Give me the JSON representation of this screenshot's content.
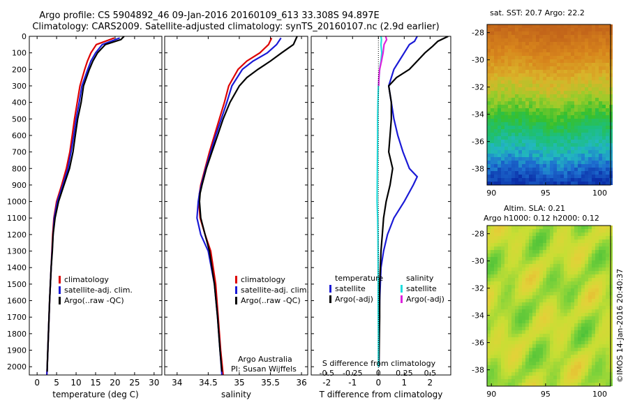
{
  "header": {
    "line1": "Argo profile: CS 5904892_46 09-Jan-2016 20160109_613 33.308S 94.897E",
    "line2": "Climatology: CARS2009. Satellite-adjusted climatology: synTS_20160107.nc (2.9d earlier)"
  },
  "footer": {
    "side_text": "©IMOS 14-Jan-2016 20:40:37",
    "argo_label": "Argo Australia",
    "pi_label": "PI: Susan Wijffels"
  },
  "colors": {
    "climatology": "#dd0000",
    "satellite": "#1a1ad6",
    "argo": "#000000",
    "sal_satellite": "#22dddd",
    "sal_argo": "#dd22dd"
  },
  "chart_data": [
    {
      "type": "line",
      "id": "temperature",
      "xlabel": "temperature (deg C)",
      "xlim": [
        -2,
        32
      ],
      "xticks": [
        0,
        5,
        10,
        15,
        20,
        25,
        30
      ],
      "ylim": [
        2050,
        0
      ],
      "yticks": [
        0,
        100,
        200,
        300,
        400,
        500,
        600,
        700,
        800,
        900,
        1000,
        1100,
        1200,
        1300,
        1400,
        1500,
        1600,
        1700,
        1800,
        1900,
        2000
      ],
      "legend": [
        "climatology",
        "satellite-adj. clim.",
        "Argo(..raw -QC)"
      ],
      "series": [
        {
          "name": "climatology",
          "color_key": "climatology",
          "depth": [
            10,
            50,
            100,
            150,
            200,
            300,
            400,
            500,
            600,
            700,
            800,
            900,
            1000,
            1100,
            1200,
            1400,
            1600,
            1800,
            2000,
            2050
          ],
          "values": [
            19.8,
            15.2,
            13.8,
            12.9,
            12.2,
            11.0,
            10.3,
            9.6,
            9.0,
            8.4,
            7.5,
            6.3,
            5.0,
            4.3,
            4.0,
            3.6,
            3.2,
            2.9,
            2.6,
            2.5
          ]
        },
        {
          "name": "satellite-adj. clim.",
          "color_key": "satellite",
          "depth": [
            10,
            50,
            100,
            150,
            200,
            300,
            400,
            500,
            600,
            700,
            800,
            900,
            1000,
            1100,
            1200,
            1400,
            1600,
            1800,
            2000,
            2050
          ],
          "values": [
            21.2,
            16.7,
            15.0,
            13.8,
            13.0,
            11.5,
            10.8,
            10.0,
            9.4,
            8.7,
            7.9,
            6.6,
            5.2,
            4.4,
            4.1,
            3.6,
            3.2,
            2.9,
            2.6,
            2.5
          ]
        },
        {
          "name": "Argo(..raw -QC)",
          "color_key": "argo",
          "depth": [
            0,
            20,
            50,
            100,
            150,
            200,
            300,
            400,
            500,
            600,
            700,
            800,
            900,
            1000,
            1100,
            1200,
            1300,
            1400,
            1600,
            1800,
            2000,
            2030
          ],
          "values": [
            22.3,
            21.5,
            17.5,
            15.5,
            14.3,
            13.4,
            11.9,
            11.3,
            10.4,
            9.8,
            9.2,
            8.3,
            6.9,
            5.5,
            4.6,
            4.1,
            3.9,
            3.6,
            3.2,
            2.9,
            2.6,
            2.6
          ]
        }
      ]
    },
    {
      "type": "line",
      "id": "salinity",
      "xlabel": "salinity",
      "xlim": [
        33.8,
        36.1
      ],
      "xticks": [
        34,
        34.5,
        35,
        35.5,
        36
      ],
      "ylim": [
        2050,
        0
      ],
      "legend": [
        "climatology",
        "satellite-adj. clim.",
        "Argo(..raw -QC)"
      ],
      "series": [
        {
          "name": "climatology",
          "color_key": "climatology",
          "depth": [
            10,
            50,
            100,
            150,
            200,
            300,
            400,
            500,
            600,
            700,
            800,
            900,
            950,
            1000,
            1100,
            1200,
            1300,
            1500,
            1700,
            1900,
            2050
          ],
          "values": [
            35.52,
            35.47,
            35.33,
            35.12,
            34.98,
            34.83,
            34.76,
            34.68,
            34.6,
            34.52,
            34.45,
            34.38,
            34.36,
            34.35,
            34.37,
            34.45,
            34.54,
            34.62,
            34.66,
            34.7,
            34.74
          ]
        },
        {
          "name": "satellite-adj. clim.",
          "color_key": "satellite",
          "depth": [
            10,
            50,
            100,
            150,
            200,
            300,
            400,
            500,
            600,
            700,
            800,
            900,
            950,
            1000,
            1100,
            1200,
            1300,
            1500,
            1700,
            1900,
            2050
          ],
          "values": [
            35.67,
            35.6,
            35.45,
            35.22,
            35.05,
            34.88,
            34.8,
            34.71,
            34.62,
            34.54,
            34.46,
            34.39,
            34.36,
            34.34,
            34.32,
            34.38,
            34.5,
            34.6,
            34.65,
            34.69,
            34.72
          ]
        },
        {
          "name": "Argo(..raw -QC)",
          "color_key": "argo",
          "depth": [
            0,
            50,
            100,
            150,
            200,
            250,
            300,
            400,
            500,
            600,
            700,
            800,
            900,
            950,
            1000,
            1100,
            1200,
            1300,
            1500,
            1700,
            1900,
            2030
          ],
          "values": [
            35.93,
            35.87,
            35.68,
            35.5,
            35.3,
            35.12,
            35.0,
            34.85,
            34.74,
            34.65,
            34.56,
            34.47,
            34.4,
            34.37,
            34.36,
            34.38,
            34.45,
            34.52,
            34.6,
            34.65,
            34.69,
            34.72
          ]
        }
      ]
    },
    {
      "type": "line",
      "id": "difference",
      "xlabel": "T difference from climatology",
      "xlabel_top": "S difference from climatology",
      "xlim": [
        -2.6,
        2.8
      ],
      "xticks": [
        -2,
        -1,
        0,
        1,
        2
      ],
      "xticks_top_labels": [
        "-0.5",
        "-0.25",
        "0",
        "0.25",
        "0.5"
      ],
      "ylim": [
        2050,
        0
      ],
      "legend_temperature_title": "temperature",
      "legend_salinity_title": "salinity",
      "legend_temperature": [
        "satellite",
        "Argo(-adj)"
      ],
      "legend_salinity": [
        "satellite",
        "Argo(-adj)"
      ],
      "series": [
        {
          "name": "T satellite",
          "color_key": "satellite",
          "depth": [
            0,
            30,
            50,
            100,
            150,
            200,
            300,
            400,
            500,
            600,
            700,
            800,
            850,
            900,
            1000,
            1100,
            1200,
            1300,
            1400,
            1600,
            1800,
            2000
          ],
          "values": [
            1.5,
            1.4,
            1.2,
            1.0,
            0.8,
            0.6,
            0.4,
            0.5,
            0.6,
            0.75,
            0.95,
            1.2,
            1.5,
            1.35,
            1.0,
            0.6,
            0.35,
            0.2,
            0.1,
            0.05,
            0.03,
            0.02
          ]
        },
        {
          "name": "T Argo(-adj)",
          "color_key": "argo",
          "depth": [
            0,
            30,
            60,
            100,
            150,
            200,
            250,
            300,
            400,
            500,
            600,
            700,
            800,
            900,
            1000,
            1100,
            1200,
            1300,
            1500,
            1700,
            1900,
            2000
          ],
          "values": [
            2.7,
            2.3,
            2.1,
            1.8,
            1.5,
            1.2,
            0.7,
            0.4,
            0.5,
            0.5,
            0.45,
            0.4,
            0.55,
            0.45,
            0.3,
            0.2,
            0.15,
            0.1,
            0.05,
            0.05,
            0.03,
            0.02
          ]
        },
        {
          "name": "S satellite",
          "color_key": "sal_satellite",
          "depth": [
            0,
            20,
            50,
            100,
            150,
            200,
            300,
            400,
            500,
            600,
            800,
            1000,
            1100,
            1200,
            1400,
            1600,
            1800,
            2000
          ],
          "values": [
            0.1,
            0.12,
            0.1,
            0.13,
            0.1,
            0.05,
            0.0,
            -0.02,
            -0.03,
            -0.03,
            -0.04,
            -0.05,
            -0.03,
            -0.02,
            -0.01,
            -0.01,
            0.0,
            0.0
          ]
        },
        {
          "name": "S Argo(-adj)",
          "color_key": "sal_argo",
          "depth": [
            0,
            20,
            50,
            100,
            150,
            200,
            250,
            300
          ],
          "values": [
            0.28,
            0.32,
            0.22,
            0.18,
            0.12,
            0.05,
            0.02,
            0.01
          ]
        }
      ]
    },
    {
      "type": "heatmap",
      "id": "sst_map",
      "title": "sat. SST: 20.7 Argo: 22.2",
      "xticks": [
        90,
        95,
        100
      ],
      "yticks": [
        -28,
        -30,
        -32,
        -34,
        -36,
        -38
      ],
      "xlim": [
        89.6,
        101
      ],
      "ylim": [
        -39.2,
        -27.4
      ]
    },
    {
      "type": "heatmap",
      "id": "sla_map",
      "title_line1": "Altim. SLA: 0.21",
      "title_line2": "Argo h1000: 0.12 h2000: 0.12",
      "xticks": [
        90,
        95,
        100
      ],
      "yticks": [
        -28,
        -30,
        -32,
        -34,
        -36,
        -38
      ],
      "xlim": [
        89.6,
        101
      ],
      "ylim": [
        -39.2,
        -27.4
      ]
    }
  ]
}
